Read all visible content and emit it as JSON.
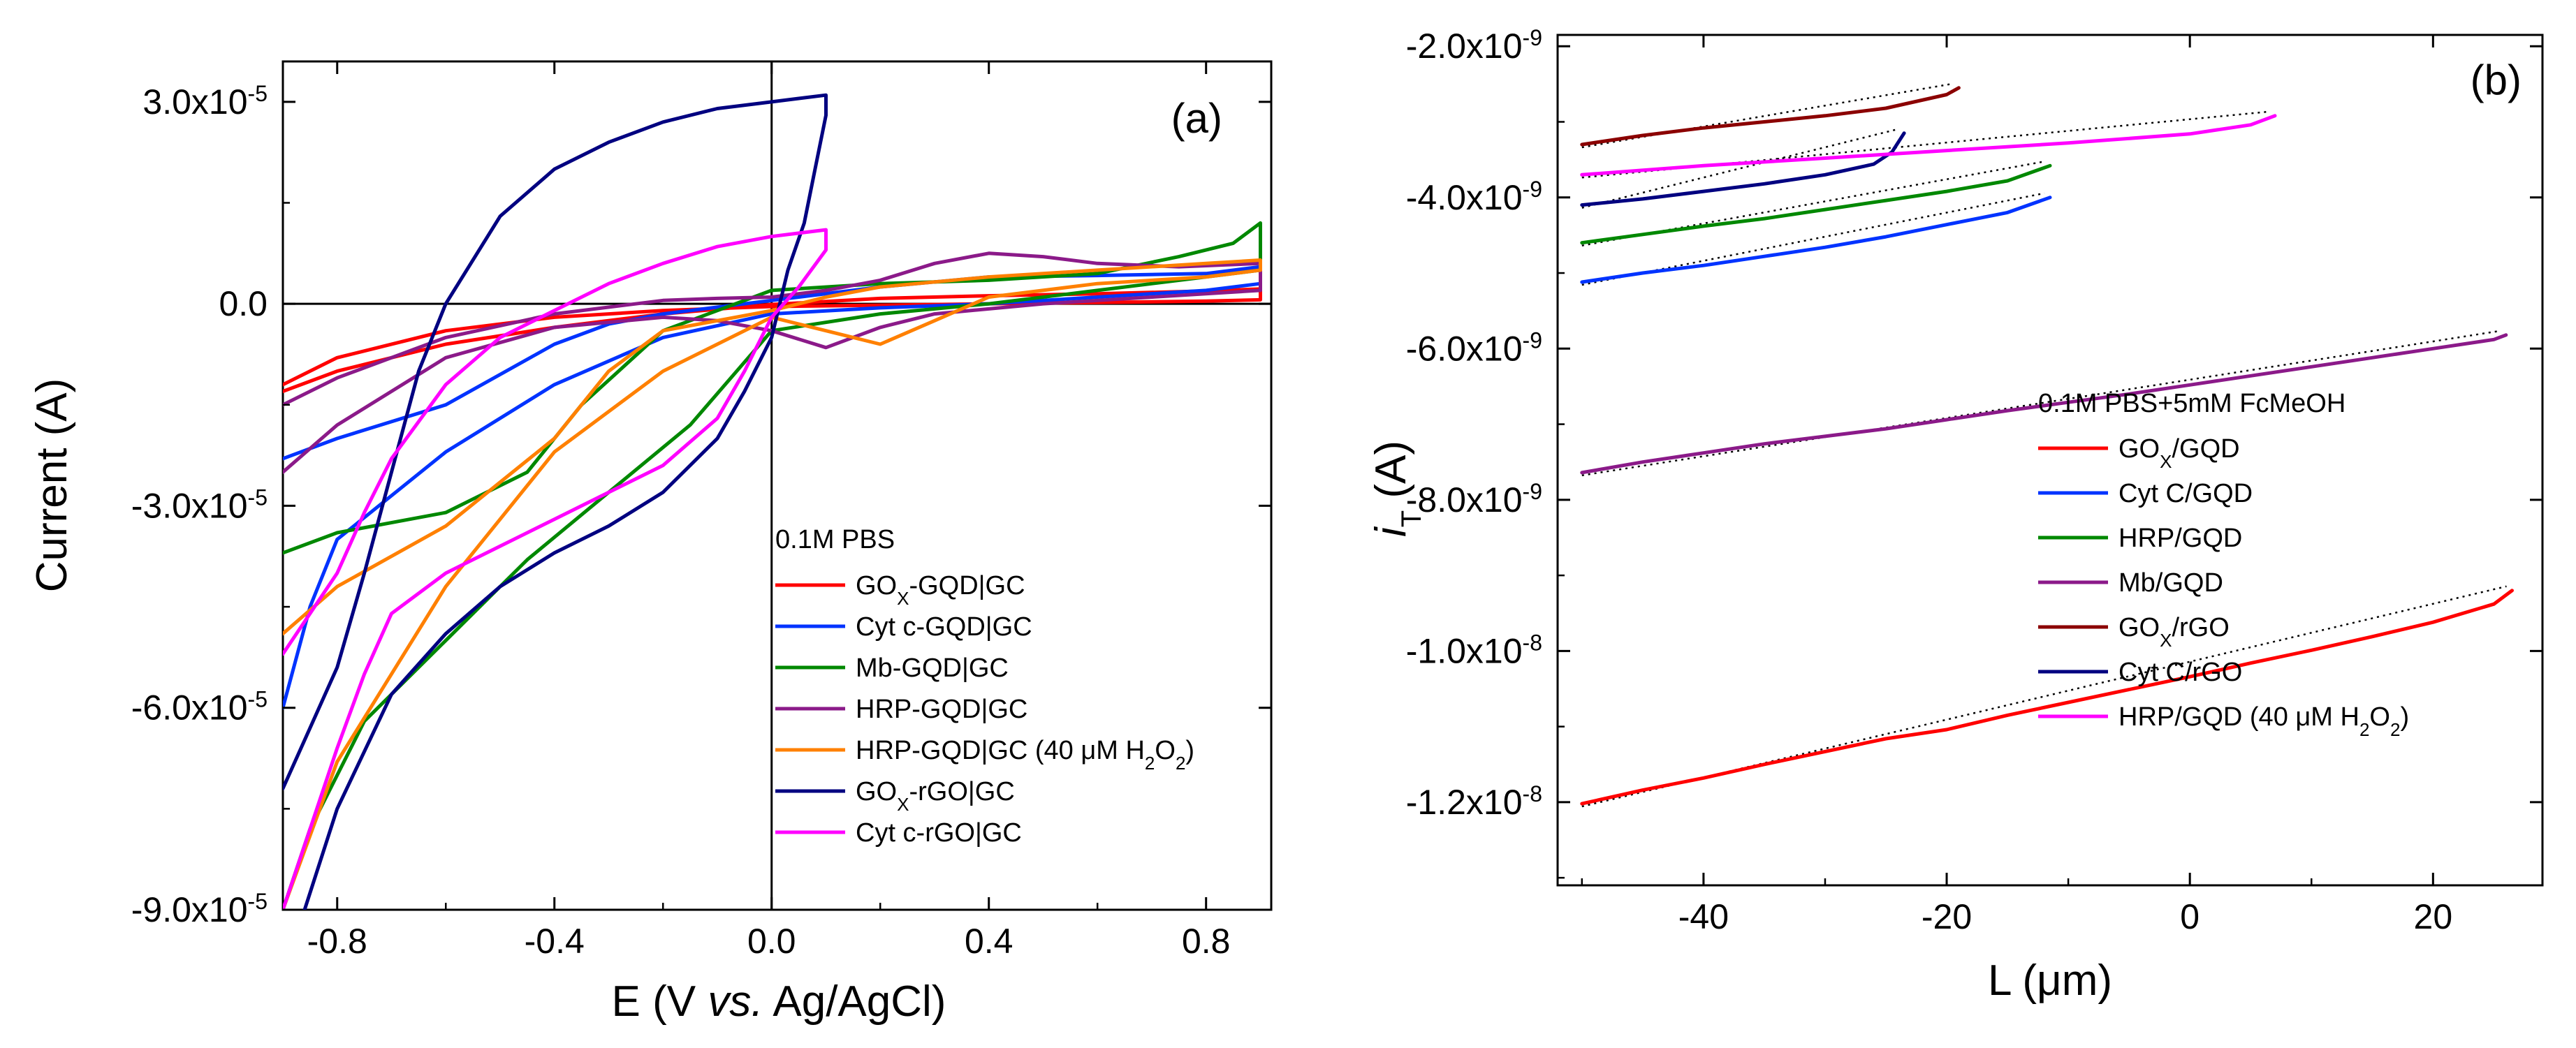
{
  "chart_data": [
    {
      "panel": "(a)",
      "type": "line",
      "subtype": "cyclic voltammogram",
      "xlabel": "E (V vs. Ag/AgCl)",
      "xlabel_parts": [
        "E (V ",
        "vs.",
        " Ag/AgCl)"
      ],
      "ylabel": "Current (A)",
      "xlim": [
        -0.9,
        0.92
      ],
      "ylim": [
        -9e-05,
        3.6e-05
      ],
      "x_ticks": [
        -0.8,
        -0.4,
        0.0,
        0.4,
        0.8
      ],
      "x_tick_labels": [
        "-0.8",
        "-0.4",
        "0.0",
        "0.4",
        "0.8"
      ],
      "y_ticks": [
        3e-05,
        0.0,
        -3e-05,
        -6e-05,
        -9e-05
      ],
      "y_tick_labels": [
        {
          "mant": "3.0x10",
          "exp": "-5"
        },
        {
          "mant": "0.0",
          "exp": ""
        },
        {
          "mant": "-3.0x10",
          "exp": "-5"
        },
        {
          "mant": "-6.0x10",
          "exp": "-5"
        },
        {
          "mant": "-9.0x10",
          "exp": "-5"
        }
      ],
      "zero_lines": true,
      "legend_title": "0.1M PBS",
      "legend_position": "bottom-right",
      "series": [
        {
          "name": "GOX-GQD|GC",
          "label_html": "GO<tspan baseline-shift='sub' font-size='26'>X</tspan>-GQD|GC",
          "color": "#ff0000",
          "x": [
            -0.9,
            -0.8,
            -0.6,
            -0.4,
            -0.2,
            0.0,
            0.2,
            0.4,
            0.6,
            0.8,
            0.9,
            0.9,
            0.8,
            0.6,
            0.4,
            0.2,
            0.0,
            -0.2,
            -0.4,
            -0.6,
            -0.8,
            -0.9
          ],
          "y": [
            -1.3e-05,
            -1e-05,
            -6e-06,
            -3.5e-06,
            -1.5e-06,
            -1e-07,
            8e-07,
            1.2e-06,
            1.5e-06,
            1.9e-06,
            2.2e-06,
            6e-07,
            4e-07,
            2e-07,
            0,
            -2e-07,
            -4e-07,
            -1e-06,
            -2e-06,
            -4e-06,
            -8e-06,
            -1.2e-05
          ]
        },
        {
          "name": "Cyt c-GQD|GC",
          "color": "#0033ff",
          "x": [
            -0.9,
            -0.8,
            -0.6,
            -0.4,
            -0.3,
            -0.2,
            0.0,
            0.2,
            0.4,
            0.6,
            0.8,
            0.9,
            0.9,
            0.8,
            0.6,
            0.4,
            0.2,
            0.0,
            -0.2,
            -0.4,
            -0.6,
            -0.8,
            -0.85,
            -0.9
          ],
          "y": [
            -2.3e-05,
            -2e-05,
            -1.5e-05,
            -6e-06,
            -3e-06,
            -1.5e-06,
            5e-07,
            2.5e-06,
            4e-06,
            4.2e-06,
            4.5e-06,
            5.5e-06,
            3e-06,
            2e-06,
            1e-06,
            0,
            -6e-07,
            -1.5e-06,
            -5e-06,
            -1.2e-05,
            -2.2e-05,
            -3.5e-05,
            -4.5e-05,
            -6e-05
          ]
        },
        {
          "name": "Mb-GQD|GC",
          "color": "#008800",
          "x": [
            -0.9,
            -0.8,
            -0.6,
            -0.45,
            -0.35,
            -0.2,
            0.0,
            0.2,
            0.4,
            0.6,
            0.75,
            0.85,
            0.9,
            0.9,
            0.8,
            0.6,
            0.4,
            0.2,
            0.0,
            -0.15,
            -0.3,
            -0.45,
            -0.6,
            -0.75,
            -0.85,
            -0.9
          ],
          "y": [
            -3.7e-05,
            -3.4e-05,
            -3.1e-05,
            -2.5e-05,
            -1.5e-05,
            -4e-06,
            2e-06,
            3e-06,
            3.5e-06,
            4.5e-06,
            7e-06,
            9e-06,
            1.2e-05,
            5e-06,
            4e-06,
            2e-06,
            0,
            -1.5e-06,
            -4e-06,
            -1.8e-05,
            -2.8e-05,
            -3.8e-05,
            -5e-05,
            -6.2e-05,
            -7.8e-05,
            -9e-05
          ]
        },
        {
          "name": "HRP-GQD|GC",
          "color": "#8b1a89",
          "x": [
            -0.9,
            -0.8,
            -0.6,
            -0.4,
            -0.2,
            -0.1,
            0.0,
            0.1,
            0.2,
            0.3,
            0.4,
            0.5,
            0.6,
            0.75,
            0.9,
            0.9,
            0.7,
            0.5,
            0.3,
            0.2,
            0.1,
            0.0,
            -0.1,
            -0.2,
            -0.4,
            -0.6,
            -0.8,
            -0.9
          ],
          "y": [
            -1.5e-05,
            -1.1e-05,
            -5e-06,
            -1.5e-06,
            5e-07,
            8e-07,
            1e-06,
            2e-06,
            3.5e-06,
            6e-06,
            7.5e-06,
            7e-06,
            6e-06,
            5.5e-06,
            6e-06,
            2e-06,
            1e-06,
            0,
            -1.5e-06,
            -3.5e-06,
            -6.5e-06,
            -4e-06,
            -2.5e-06,
            -2e-06,
            -3.5e-06,
            -8e-06,
            -1.8e-05,
            -2.5e-05
          ]
        },
        {
          "name": "HRP-GQD|GC (40 μM H2O2)",
          "label_html": "HRP-GQD|GC (40 μM H<tspan baseline-shift='sub' font-size='26'>2</tspan><tspan baseline-shift='baseline'>O</tspan><tspan baseline-shift='sub' font-size='26'>2</tspan><tspan baseline-shift='baseline'>)</tspan>",
          "color": "#ff8000",
          "x": [
            -0.9,
            -0.8,
            -0.6,
            -0.4,
            -0.3,
            -0.2,
            0.0,
            0.1,
            0.2,
            0.4,
            0.6,
            0.8,
            0.9,
            0.9,
            0.8,
            0.6,
            0.4,
            0.3,
            0.2,
            0.1,
            0.0,
            -0.2,
            -0.4,
            -0.6,
            -0.8,
            -0.9
          ],
          "y": [
            -4.9e-05,
            -4.2e-05,
            -3.3e-05,
            -2e-05,
            -1e-05,
            -4e-06,
            -1e-06,
            1e-06,
            2.5e-06,
            4e-06,
            5e-06,
            6e-06,
            6.5e-06,
            5e-06,
            4e-06,
            3e-06,
            1e-06,
            -2.5e-06,
            -6e-06,
            -4e-06,
            -2e-06,
            -1e-05,
            -2.2e-05,
            -4.2e-05,
            -6.8e-05,
            -9e-05
          ]
        },
        {
          "name": "GOX-rGO|GC",
          "label_html": "GO<tspan baseline-shift='sub' font-size='26'>X</tspan>-rGO|GC",
          "color": "#000080",
          "x": [
            -0.9,
            -0.85,
            -0.8,
            -0.75,
            -0.7,
            -0.65,
            -0.6,
            -0.5,
            -0.4,
            -0.3,
            -0.2,
            -0.1,
            0.0,
            0.05,
            0.1,
            0.1,
            0.08,
            0.06,
            0.03,
            0.0,
            -0.05,
            -0.1,
            -0.2,
            -0.3,
            -0.4,
            -0.5,
            -0.6,
            -0.7,
            -0.8,
            -0.9
          ],
          "y": [
            -7.2e-05,
            -6.3e-05,
            -5.4e-05,
            -4e-05,
            -2.5e-05,
            -1e-05,
            0,
            1.3e-05,
            2e-05,
            2.4e-05,
            2.7e-05,
            2.9e-05,
            3e-05,
            3.05e-05,
            3.1e-05,
            2.8e-05,
            2e-05,
            1.2e-05,
            5e-06,
            -5e-06,
            -1.3e-05,
            -2e-05,
            -2.8e-05,
            -3.3e-05,
            -3.7e-05,
            -4.2e-05,
            -4.9e-05,
            -5.8e-05,
            -7.5e-05,
            -0.0001
          ]
        },
        {
          "name": "Cyt c-rGO|GC",
          "color": "#ff00ff",
          "x": [
            -0.9,
            -0.85,
            -0.8,
            -0.75,
            -0.7,
            -0.6,
            -0.5,
            -0.4,
            -0.3,
            -0.2,
            -0.1,
            0.0,
            0.05,
            0.1,
            0.1,
            0.05,
            0.0,
            -0.05,
            -0.1,
            -0.2,
            -0.3,
            -0.4,
            -0.5,
            -0.6,
            -0.7,
            -0.75,
            -0.8,
            -0.85,
            -0.9
          ],
          "y": [
            -5.2e-05,
            -4.6e-05,
            -4e-05,
            -3.1e-05,
            -2.3e-05,
            -1.2e-05,
            -5e-06,
            -1e-06,
            3e-06,
            6e-06,
            8.5e-06,
            1e-05,
            1.05e-05,
            1.1e-05,
            8e-06,
            2.5e-06,
            -2e-06,
            -1e-05,
            -1.7e-05,
            -2.4e-05,
            -2.8e-05,
            -3.2e-05,
            -3.6e-05,
            -4e-05,
            -4.6e-05,
            -5.5e-05,
            -6.6e-05,
            -7.8e-05,
            -9e-05
          ]
        }
      ]
    },
    {
      "panel": "(b)",
      "type": "line",
      "subtype": "approach curves with fits",
      "xlabel": "L (μm)",
      "ylabel": "iT (A)",
      "ylabel_main": "i",
      "ylabel_sub": "T",
      "ylabel_tail": " (A)",
      "xlim": [
        -52,
        29
      ],
      "ylim": [
        -1.31e-08,
        -1.85e-09
      ],
      "x_ticks": [
        -40,
        -20,
        0,
        20
      ],
      "x_tick_labels": [
        "-40",
        "-20",
        "0",
        "20"
      ],
      "y_ticks": [
        -1.2e-08,
        -1e-08,
        -8e-09,
        -6e-09,
        -4e-09,
        -2e-09
      ],
      "y_tick_labels": [
        {
          "mant": "-1.2x10",
          "exp": "-8"
        },
        {
          "mant": "-1.0x10",
          "exp": "-8"
        },
        {
          "mant": "-8.0x10",
          "exp": "-9"
        },
        {
          "mant": "-6.0x10",
          "exp": "-9"
        },
        {
          "mant": "-4.0x10",
          "exp": "-9"
        },
        {
          "mant": "-2.0x10",
          "exp": "-9"
        }
      ],
      "legend_title": "0.1M PBS+5mM FcMeOH",
      "legend_position": "center-right",
      "fit_style": "black dotted",
      "series": [
        {
          "name": "GOX/GQD",
          "label_html": "GO<tspan baseline-shift='sub' font-size='26'>X</tspan><tspan baseline-shift='baseline'>/GQD</tspan>",
          "color": "#ff0000",
          "x": [
            -50,
            -45,
            -40,
            -35,
            -30,
            -25,
            -20,
            -15,
            -10,
            -5,
            0,
            5,
            10,
            15,
            20,
            25,
            26.5
          ],
          "y": [
            -1.202e-08,
            -1.184e-08,
            -1.168e-08,
            -1.15e-08,
            -1.133e-08,
            -1.116e-08,
            -1.104e-08,
            -1.085e-08,
            -1.068e-08,
            -1.051e-08,
            -1.034e-08,
            -1.016e-08,
            -9.99e-09,
            -9.81e-09,
            -9.62e-09,
            -9.38e-09,
            -9.2e-09
          ]
        },
        {
          "name": "Cyt C/GQD",
          "color": "#0033ff",
          "x": [
            -50,
            -45,
            -40,
            -35,
            -30,
            -25,
            -20,
            -15,
            -11.5
          ],
          "y": [
            -5.12e-09,
            -5e-09,
            -4.9e-09,
            -4.78e-09,
            -4.66e-09,
            -4.52e-09,
            -4.36e-09,
            -4.2e-09,
            -4e-09
          ]
        },
        {
          "name": "HRP/GQD",
          "color": "#008800",
          "x": [
            -50,
            -45,
            -40,
            -35,
            -30,
            -25,
            -20,
            -15,
            -11.5
          ],
          "y": [
            -4.6e-09,
            -4.49e-09,
            -4.38e-09,
            -4.28e-09,
            -4.16e-09,
            -4.04e-09,
            -3.92e-09,
            -3.78e-09,
            -3.58e-09
          ]
        },
        {
          "name": "Mb/GQD",
          "color": "#8b1a89",
          "x": [
            -50,
            -45,
            -40,
            -35,
            -30,
            -25,
            -20,
            -15,
            -10,
            -5,
            0,
            5,
            10,
            15,
            20,
            25,
            26
          ],
          "y": [
            -7.64e-09,
            -7.5e-09,
            -7.38e-09,
            -7.26e-09,
            -7.16e-09,
            -7.06e-09,
            -6.94e-09,
            -6.82e-09,
            -6.71e-09,
            -6.6e-09,
            -6.48e-09,
            -6.36e-09,
            -6.24e-09,
            -6.12e-09,
            -6e-09,
            -5.88e-09,
            -5.82e-09
          ]
        },
        {
          "name": "GOX/rGO",
          "label_html": "GO<tspan baseline-shift='sub' font-size='26'>X</tspan><tspan baseline-shift='baseline'>/rGO</tspan>",
          "color": "#8b0000",
          "x": [
            -50,
            -45,
            -40,
            -35,
            -30,
            -25,
            -20,
            -19
          ],
          "y": [
            -3.3e-09,
            -3.18e-09,
            -3.08e-09,
            -3e-09,
            -2.92e-09,
            -2.82e-09,
            -2.64e-09,
            -2.55e-09
          ]
        },
        {
          "name": "Cyt C/rGO",
          "color": "#000080",
          "x": [
            -50,
            -45,
            -40,
            -35,
            -30,
            -26,
            -24.5,
            -23.5
          ],
          "y": [
            -4.1e-09,
            -4.02e-09,
            -3.92e-09,
            -3.82e-09,
            -3.7e-09,
            -3.56e-09,
            -3.4e-09,
            -3.15e-09
          ]
        },
        {
          "name": "HRP/GQD (40 μM H2O2)",
          "label_html": "HRP/GQD (40 μM H<tspan baseline-shift='sub' font-size='26'>2</tspan><tspan baseline-shift='baseline'>O</tspan><tspan baseline-shift='sub' font-size='26'>2</tspan><tspan baseline-shift='baseline'>)</tspan>",
          "color": "#ff00ff",
          "x": [
            -50,
            -40,
            -30,
            -20,
            -10,
            0,
            5,
            7
          ],
          "y": [
            -3.7e-09,
            -3.58e-09,
            -3.48e-09,
            -3.38e-09,
            -3.28e-09,
            -3.16e-09,
            -3.04e-09,
            -2.92e-09
          ]
        }
      ]
    }
  ]
}
